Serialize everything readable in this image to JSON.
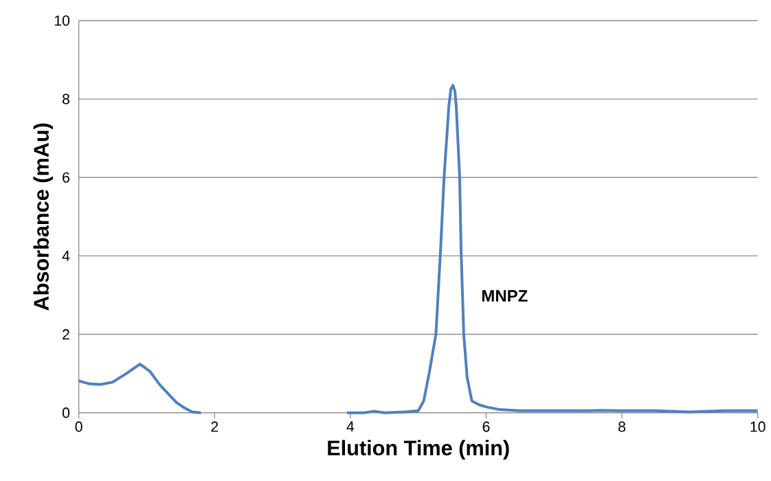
{
  "chart_data": {
    "type": "line",
    "xlabel": "Elution Time (min)",
    "ylabel": "Absorbance (mAu)",
    "xlim": [
      0,
      10
    ],
    "ylim": [
      0,
      10
    ],
    "xticks": [
      0,
      2,
      4,
      6,
      8,
      10
    ],
    "yticks": [
      0,
      2,
      4,
      6,
      8,
      10
    ],
    "grid": "y",
    "marker": "none",
    "line_style": "solid",
    "annotations": [
      "MNPZ"
    ],
    "series": [
      {
        "color": "#4f81bd",
        "x": [
          0,
          0.15,
          0.32,
          0.5,
          0.7,
          0.9,
          1.05,
          1.19,
          1.32,
          1.44,
          1.56,
          1.67,
          1.8,
          1.9,
          3.9,
          3.95,
          4.2,
          4.35,
          4.5,
          4.8,
          5.0,
          5.08,
          5.16,
          5.26,
          5.33,
          5.38,
          5.45,
          5.48,
          5.51,
          5.54,
          5.56,
          5.61,
          5.63,
          5.67,
          5.72,
          5.79,
          5.9,
          6.0,
          6.2,
          6.5,
          7.0,
          7.5,
          7.7,
          8.0,
          8.5,
          9.0,
          9.5,
          10.0
        ],
        "values": [
          0.81,
          0.74,
          0.72,
          0.78,
          1.0,
          1.24,
          1.05,
          0.72,
          0.48,
          0.26,
          0.12,
          0.02,
          0,
          null,
          null,
          0,
          0,
          0.04,
          0,
          0.02,
          0.05,
          0.3,
          1.0,
          2.0,
          4.2,
          6.0,
          7.8,
          8.25,
          8.35,
          8.2,
          7.8,
          6.0,
          4.2,
          2.0,
          0.9,
          0.3,
          0.2,
          0.15,
          0.08,
          0.05,
          0.05,
          0.05,
          0.06,
          0.05,
          0.05,
          0.02,
          0.05,
          0.05
        ]
      }
    ]
  }
}
